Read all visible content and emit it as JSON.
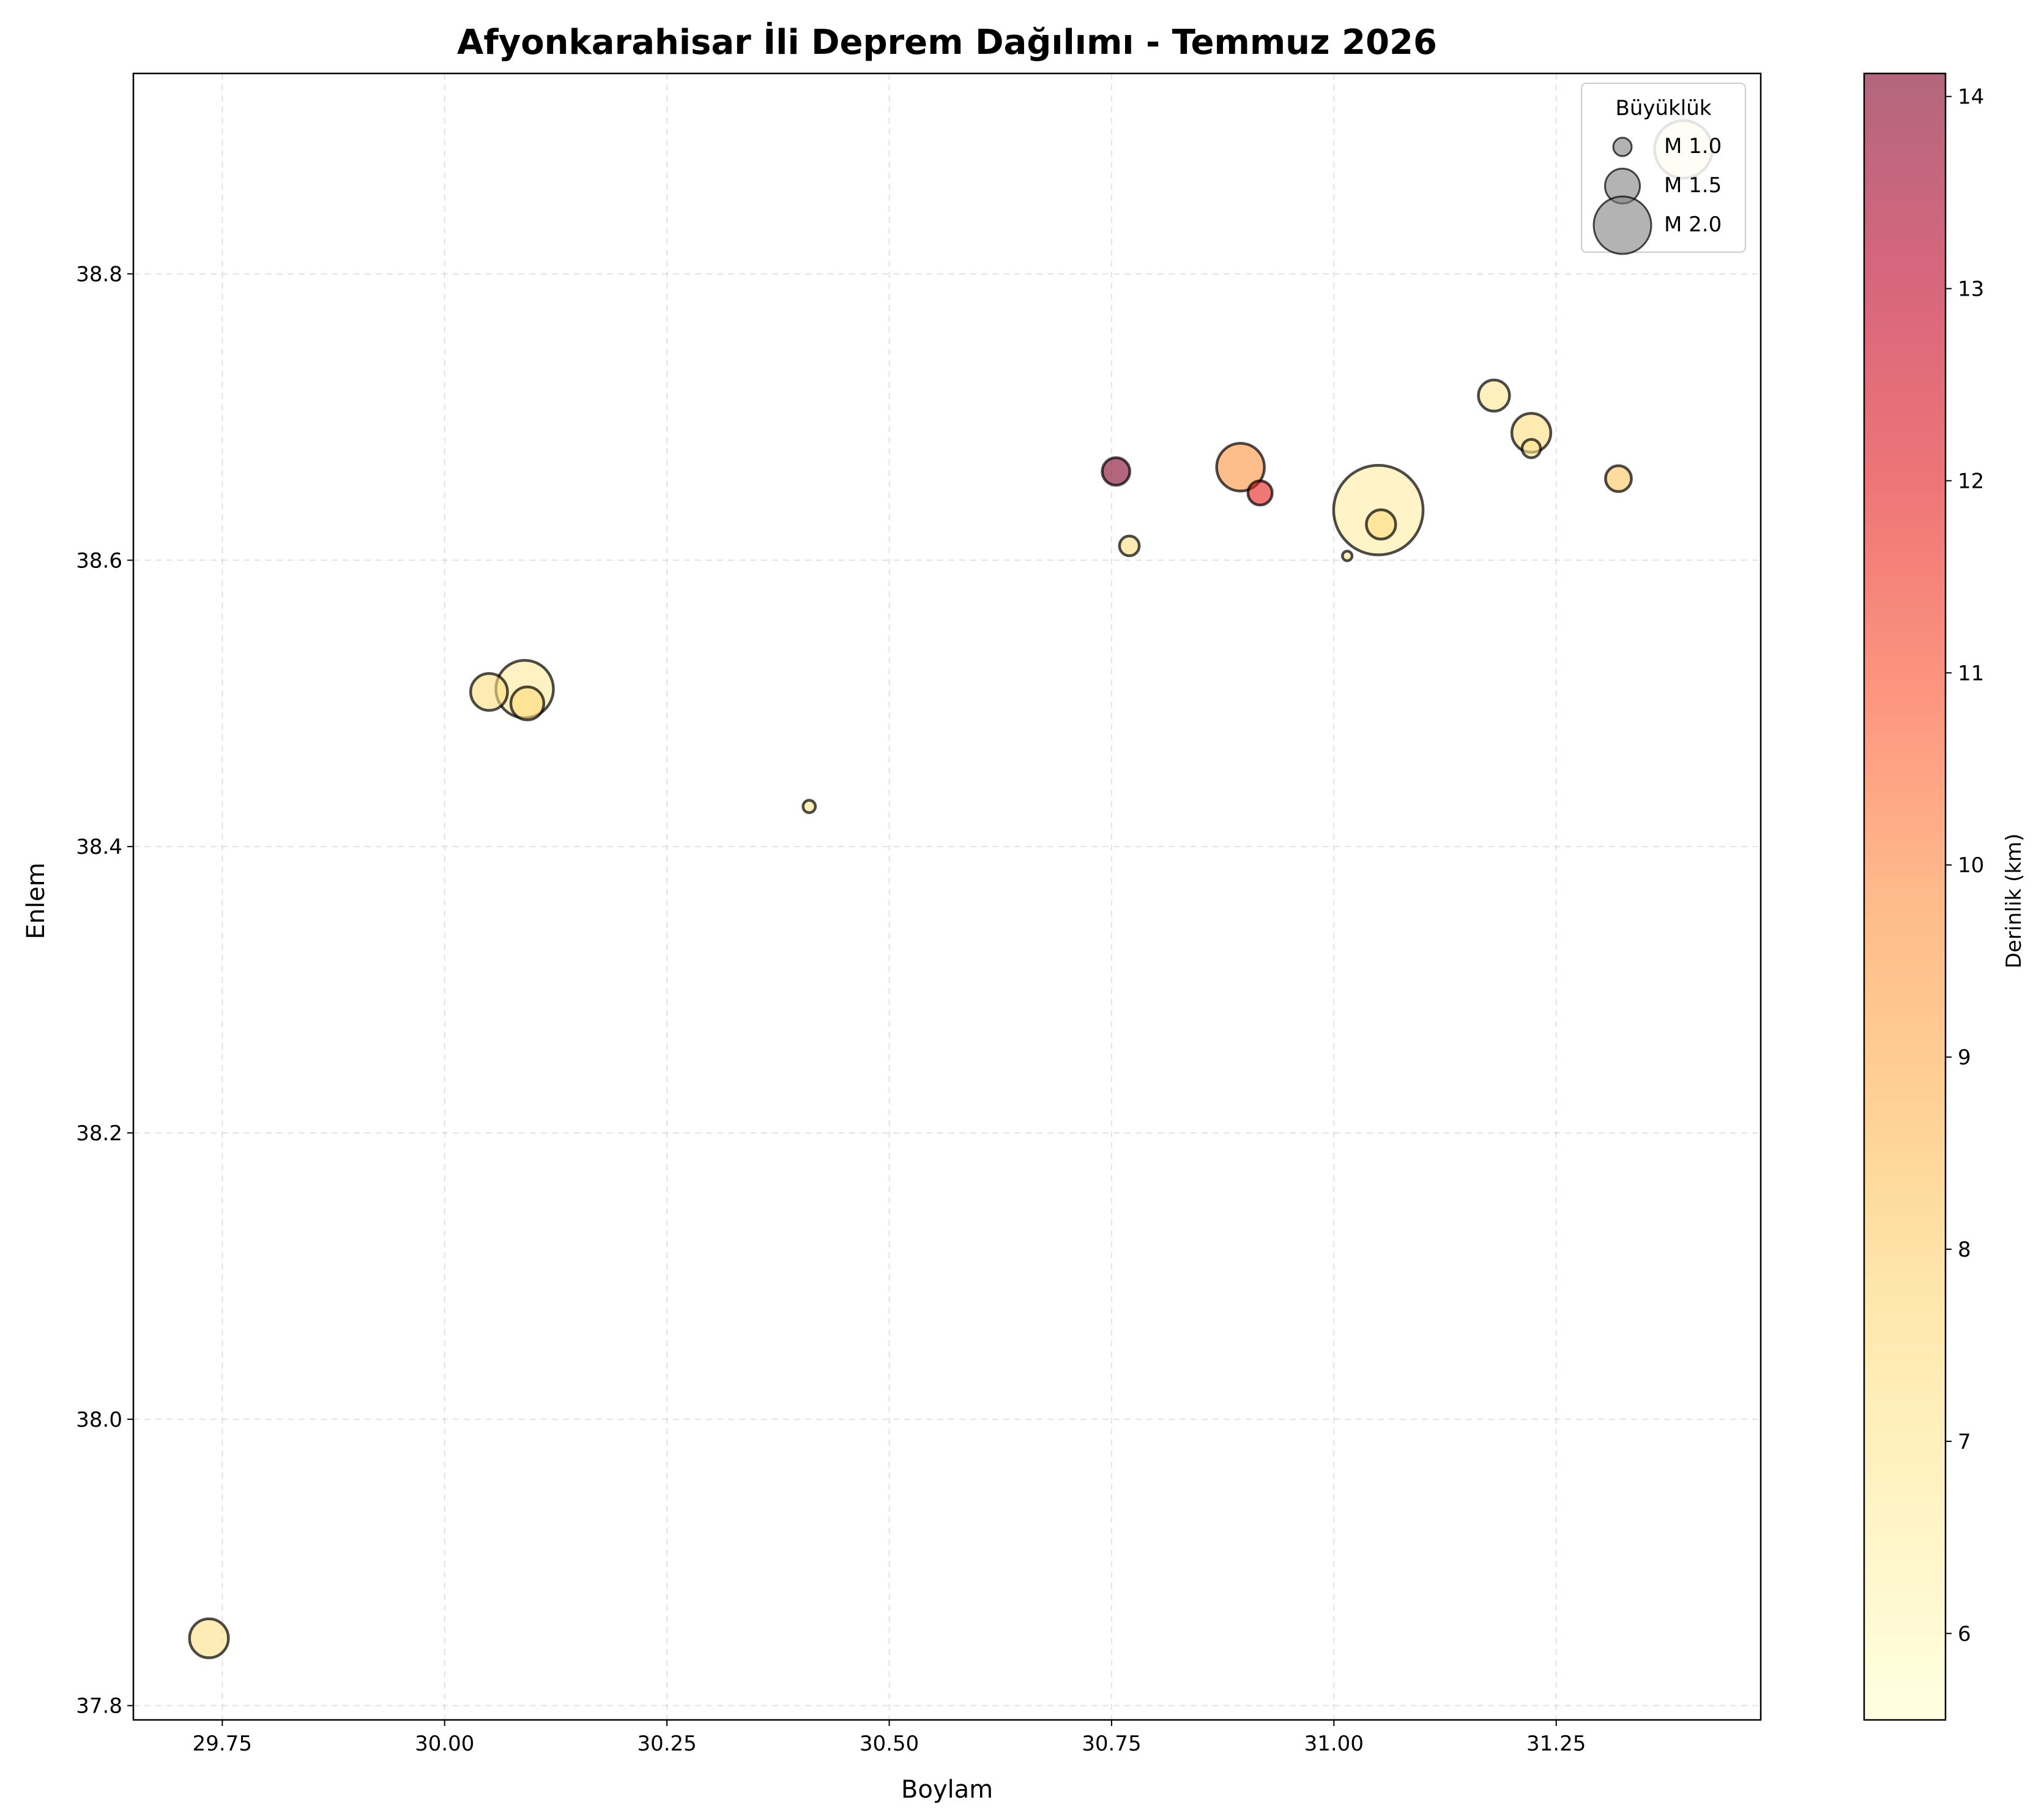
{
  "chart_data": {
    "type": "scatter",
    "title": "Afyonkarahisar İli Deprem Dağılımı - Temmuz 2026",
    "xlabel": "Boylam",
    "ylabel": "Enlem",
    "xlim": [
      29.65,
      31.48
    ],
    "ylim": [
      37.79,
      38.94
    ],
    "x_ticks": [
      "29.75",
      "30.00",
      "30.25",
      "30.50",
      "30.75",
      "31.00",
      "31.25"
    ],
    "y_ticks": [
      "37.8",
      "38.0",
      "38.2",
      "38.4",
      "38.6",
      "38.8"
    ],
    "grid": true,
    "size_encoding": "magnitude",
    "color_encoding": "depth_km",
    "colormap": [
      "#ffffcc",
      "#ffeda0",
      "#fed976",
      "#feb24c",
      "#fd8d3c",
      "#fc4e2a",
      "#e31a1c",
      "#bd0026",
      "#800026"
    ],
    "colorbar": {
      "label": "Derinlik (km)",
      "range": [
        5.55,
        14.12
      ],
      "ticks": [
        "6",
        "7",
        "8",
        "9",
        "10",
        "11",
        "12",
        "13",
        "14"
      ]
    },
    "legend": {
      "title": "Büyüklük",
      "position": "top-right",
      "entries": [
        {
          "label": "M 1.0",
          "magnitude": 1.0
        },
        {
          "label": "M 1.5",
          "magnitude": 1.5
        },
        {
          "label": "M 2.0",
          "magnitude": 2.0
        }
      ]
    },
    "points": [
      {
        "lon": 29.735,
        "lat": 37.847,
        "mag": 1.6,
        "depth": 7.3
      },
      {
        "lon": 30.05,
        "lat": 38.508,
        "mag": 1.55,
        "depth": 7.4
      },
      {
        "lon": 30.093,
        "lat": 38.5,
        "mag": 1.45,
        "depth": 7.6
      },
      {
        "lon": 30.09,
        "lat": 38.51,
        "mag": 2.0,
        "depth": 6.8
      },
      {
        "lon": 30.41,
        "lat": 38.428,
        "mag": 0.75,
        "depth": 7.2
      },
      {
        "lon": 30.755,
        "lat": 38.662,
        "mag": 1.3,
        "depth": 14.1
      },
      {
        "lon": 30.77,
        "lat": 38.61,
        "mag": 1.05,
        "depth": 7.4
      },
      {
        "lon": 30.895,
        "lat": 38.665,
        "mag": 1.8,
        "depth": 9.7
      },
      {
        "lon": 30.917,
        "lat": 38.647,
        "mag": 1.2,
        "depth": 11.9
      },
      {
        "lon": 31.015,
        "lat": 38.603,
        "mag": 0.6,
        "depth": 7.1
      },
      {
        "lon": 31.05,
        "lat": 38.635,
        "mag": 2.55,
        "depth": 6.6
      },
      {
        "lon": 31.053,
        "lat": 38.625,
        "mag": 1.35,
        "depth": 7.4
      },
      {
        "lon": 31.18,
        "lat": 38.715,
        "mag": 1.4,
        "depth": 6.9
      },
      {
        "lon": 31.222,
        "lat": 38.689,
        "mag": 1.6,
        "depth": 7.5
      },
      {
        "lon": 31.222,
        "lat": 38.678,
        "mag": 1.0,
        "depth": 7.0
      },
      {
        "lon": 31.32,
        "lat": 38.657,
        "mag": 1.25,
        "depth": 8.3
      },
      {
        "lon": 31.393,
        "lat": 38.887,
        "mag": 2.0,
        "depth": 6.7
      }
    ]
  }
}
